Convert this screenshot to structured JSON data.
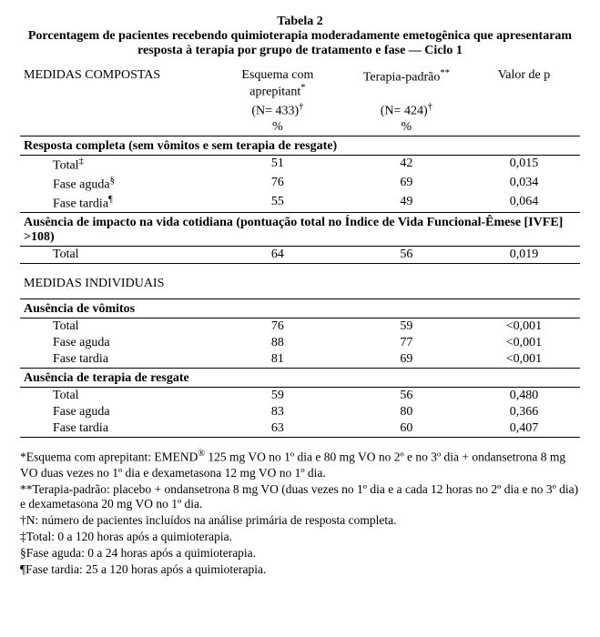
{
  "title": {
    "label": "Tabela 2",
    "caption": "Porcentagem de pacientes recebendo quimioterapia moderadamente emetogênica que apresentaram resposta à terapia por grupo de tratamento e fase — Ciclo 1"
  },
  "columns": {
    "measures": "MEDIDAS COMPOSTAS",
    "arm1_line1": "Esquema com aprepitant",
    "arm1_sup": "*",
    "arm1_line2_a": "(N= 433)",
    "arm1_line2_sup": "†",
    "arm2_line1": "Terapia-padrão",
    "arm2_sup": "**",
    "arm2_line2_a": "(N= 424)",
    "arm2_line2_sup": "†",
    "pct": "%",
    "pval": "Valor de p"
  },
  "sections": {
    "s1": "Resposta completa (sem vômitos e sem terapia de resgate)",
    "s2": "Ausência de impacto na vida cotidiana (pontuação total no Índice de Vida Funcional-Êmese [IVFE] >108)",
    "s3": "MEDIDAS INDIVIDUAIS",
    "s4": "Ausência de vômitos",
    "s5": "Ausência de terapia de resgate"
  },
  "rows": {
    "r1": {
      "label": "Total",
      "sup": "‡",
      "a": "51",
      "b": "42",
      "p": "0,015"
    },
    "r2": {
      "label": "Fase aguda",
      "sup": "§",
      "a": "76",
      "b": "69",
      "p": "0,034"
    },
    "r3": {
      "label": "Fase tardia",
      "sup": "¶",
      "a": "55",
      "b": "49",
      "p": "0,064"
    },
    "r4": {
      "label": "Total",
      "a": "64",
      "b": "56",
      "p": "0,019"
    },
    "r5": {
      "label": "Total",
      "a": "76",
      "b": "59",
      "p": "<0,001"
    },
    "r6": {
      "label": "Fase aguda",
      "a": "88",
      "b": "77",
      "p": "<0,001"
    },
    "r7": {
      "label": "Fase tardia",
      "a": "81",
      "b": "69",
      "p": "<0,001"
    },
    "r8": {
      "label": "Total",
      "a": "59",
      "b": "56",
      "p": "0,480"
    },
    "r9": {
      "label": "Fase aguda",
      "a": "83",
      "b": "80",
      "p": "0,366"
    },
    "r10": {
      "label": "Fase tardia",
      "a": "63",
      "b": "60",
      "p": "0,407"
    }
  },
  "footnotes": {
    "f1a": "*Esquema com aprepitant: EMEND",
    "f1sup": "®",
    "f1b": " 125 mg VO no 1º dia e 80 mg VO no 2º e no 3º dia + ondansetrona 8 mg VO duas vezes no 1º dia e dexametasona 12 mg VO no 1º dia.",
    "f2": "**Terapia-padrão: placebo + ondansetrona 8 mg VO (duas vezes no 1º dia e a cada 12 horas no 2º dia e no 3º dia) e dexametasona 20 mg VO no 1º dia.",
    "f3": "†N: número de pacientes incluídos na análise primária de resposta completa.",
    "f4": "‡Total: 0 a 120 horas após a quimioterapia.",
    "f5": "§Fase aguda: 0 a 24 horas após a quimioterapia.",
    "f6": "¶Fase tardia: 25 a 120 horas após a quimioterapia."
  }
}
